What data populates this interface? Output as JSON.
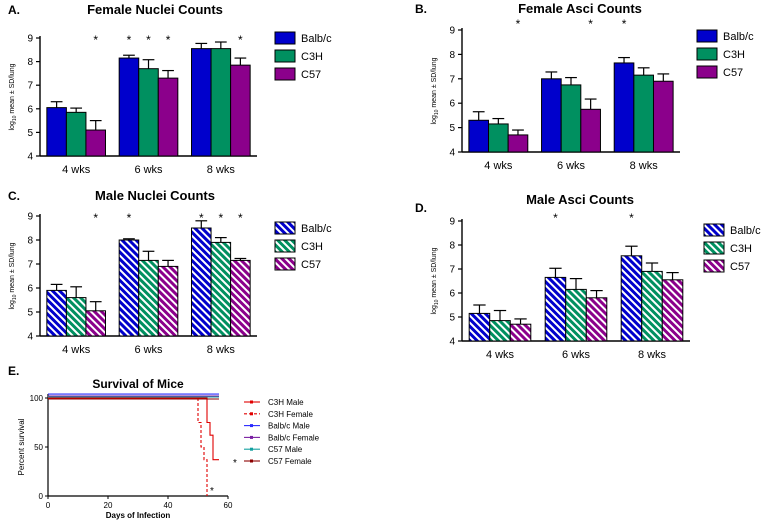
{
  "colors": {
    "balb": "#0000cc",
    "c3h": "#009060",
    "c57": "#8b008b",
    "red": "#e00000",
    "darkred": "#8b0000",
    "purple": "#7a1fa2",
    "blue": "#2a2aff",
    "teal": "#12a0a0"
  },
  "chart_data": [
    {
      "id": "A",
      "panel_label": "A.",
      "type": "bar",
      "title": "Female Nuclei Counts",
      "ylabel": "log10 mean ± SD/lung",
      "ylim": [
        4,
        9
      ],
      "yticks": [
        "4",
        "5",
        "6",
        "7",
        "8",
        "9"
      ],
      "categories": [
        "4 wks",
        "6 wks",
        "8 wks"
      ],
      "hatched": false,
      "series": [
        {
          "name": "Balb/c",
          "color": "#0000cc",
          "values": [
            6.05,
            8.15,
            8.55
          ],
          "errors": [
            0.25,
            0.12,
            0.22
          ]
        },
        {
          "name": "C3H",
          "color": "#009060",
          "values": [
            5.85,
            7.7,
            8.55
          ],
          "errors": [
            0.18,
            0.38,
            0.28
          ]
        },
        {
          "name": "C57",
          "color": "#8b008b",
          "values": [
            5.1,
            7.3,
            7.85
          ],
          "errors": [
            0.4,
            0.32,
            0.3
          ]
        }
      ],
      "significance": [
        [
          null,
          null,
          "*"
        ],
        [
          "*",
          "*",
          "*"
        ],
        [
          null,
          null,
          "*"
        ]
      ]
    },
    {
      "id": "B",
      "panel_label": "B.",
      "type": "bar",
      "title": "Female Asci Counts",
      "ylabel": "log10 mean ± SD/lung",
      "ylim": [
        4,
        9
      ],
      "yticks": [
        "4",
        "5",
        "6",
        "7",
        "8",
        "9"
      ],
      "categories": [
        "4 wks",
        "6 wks",
        "8 wks"
      ],
      "hatched": false,
      "series": [
        {
          "name": "Balb/c",
          "color": "#0000cc",
          "values": [
            5.3,
            7.0,
            7.65
          ],
          "errors": [
            0.35,
            0.28,
            0.22
          ]
        },
        {
          "name": "C3H",
          "color": "#009060",
          "values": [
            5.15,
            6.75,
            7.15
          ],
          "errors": [
            0.22,
            0.3,
            0.3
          ]
        },
        {
          "name": "C57",
          "color": "#8b008b",
          "values": [
            4.7,
            5.75,
            6.9
          ],
          "errors": [
            0.2,
            0.42,
            0.3
          ]
        }
      ],
      "significance": [
        [
          null,
          null,
          "*"
        ],
        [
          null,
          null,
          "*"
        ],
        [
          "*",
          null,
          null
        ]
      ]
    },
    {
      "id": "C",
      "panel_label": "C.",
      "type": "bar",
      "title": "Male Nuclei Counts",
      "ylabel": "log10 mean ± SD/lung",
      "ylim": [
        4,
        9
      ],
      "yticks": [
        "4",
        "5",
        "6",
        "7",
        "8",
        "9"
      ],
      "categories": [
        "4 wks",
        "6 wks",
        "8 wks"
      ],
      "hatched": true,
      "series": [
        {
          "name": "Balb/c",
          "color": "#0000cc",
          "values": [
            5.9,
            8.0,
            8.5
          ],
          "errors": [
            0.25,
            0.05,
            0.3
          ]
        },
        {
          "name": "C3H",
          "color": "#009060",
          "values": [
            5.6,
            7.15,
            7.9
          ],
          "errors": [
            0.45,
            0.38,
            0.2
          ]
        },
        {
          "name": "C57",
          "color": "#8b008b",
          "values": [
            5.05,
            6.9,
            7.15
          ],
          "errors": [
            0.38,
            0.25,
            0.08
          ]
        }
      ],
      "significance": [
        [
          null,
          null,
          "*"
        ],
        [
          "*",
          null,
          null
        ],
        [
          "*",
          "*",
          "*"
        ]
      ]
    },
    {
      "id": "D",
      "panel_label": "D.",
      "type": "bar",
      "title": "Male Asci Counts",
      "ylabel": "log10 mean ± SD/lung",
      "ylim": [
        4,
        9
      ],
      "yticks": [
        "4",
        "5",
        "6",
        "7",
        "8",
        "9"
      ],
      "categories": [
        "4 wks",
        "6 wks",
        "8 wks"
      ],
      "hatched": true,
      "series": [
        {
          "name": "Balb/c",
          "color": "#0000cc",
          "values": [
            5.15,
            6.65,
            7.55
          ],
          "errors": [
            0.35,
            0.38,
            0.4
          ]
        },
        {
          "name": "C3H",
          "color": "#009060",
          "values": [
            4.85,
            6.15,
            6.9
          ],
          "errors": [
            0.42,
            0.45,
            0.35
          ]
        },
        {
          "name": "C57",
          "color": "#8b008b",
          "values": [
            4.7,
            5.8,
            6.55
          ],
          "errors": [
            0.22,
            0.3,
            0.3
          ]
        }
      ],
      "significance": [
        [
          null,
          null,
          null
        ],
        [
          "*",
          null,
          null
        ],
        [
          "*",
          null,
          null
        ]
      ]
    },
    {
      "id": "E",
      "panel_label": "E.",
      "type": "line",
      "title": "Survival of Mice",
      "xlabel": "Days of Infection",
      "ylabel": "Percent survival",
      "xlim": [
        0,
        60
      ],
      "ylim": [
        0,
        100
      ],
      "xticks": [
        "0",
        "20",
        "40",
        "60"
      ],
      "yticks": [
        "0",
        "50",
        "100"
      ],
      "series": [
        {
          "name": "C3H Male",
          "color": "#e00000",
          "dashed": false,
          "points": [
            [
              0,
              100
            ],
            [
              53,
              100
            ],
            [
              53,
              75
            ],
            [
              54,
              75
            ],
            [
              54,
              62
            ],
            [
              55,
              62
            ],
            [
              55,
              37
            ],
            [
              57,
              37
            ]
          ]
        },
        {
          "name": "C3H Female",
          "color": "#e00000",
          "dashed": true,
          "points": [
            [
              0,
              100
            ],
            [
              50,
              100
            ],
            [
              50,
              75
            ],
            [
              51,
              75
            ],
            [
              51,
              50
            ],
            [
              52,
              50
            ],
            [
              52,
              37
            ],
            [
              53,
              37
            ],
            [
              53,
              0
            ]
          ]
        },
        {
          "name": "Balb/c Male",
          "color": "#2a2aff",
          "dashed": false,
          "points": [
            [
              0,
              104
            ],
            [
              57,
              104
            ]
          ]
        },
        {
          "name": "Balb/c Female",
          "color": "#7a1fa2",
          "dashed": false,
          "points": [
            [
              0,
              102
            ],
            [
              57,
              102
            ]
          ]
        },
        {
          "name": "C57 Male",
          "color": "#12a0a0",
          "dashed": false,
          "points": [
            [
              0,
              101
            ],
            [
              57,
              101
            ]
          ]
        },
        {
          "name": "C57 Female",
          "color": "#8b0000",
          "dashed": false,
          "points": [
            [
              0,
              99
            ],
            [
              57,
              99
            ]
          ]
        }
      ],
      "annotations": [
        "*",
        "*"
      ]
    }
  ]
}
